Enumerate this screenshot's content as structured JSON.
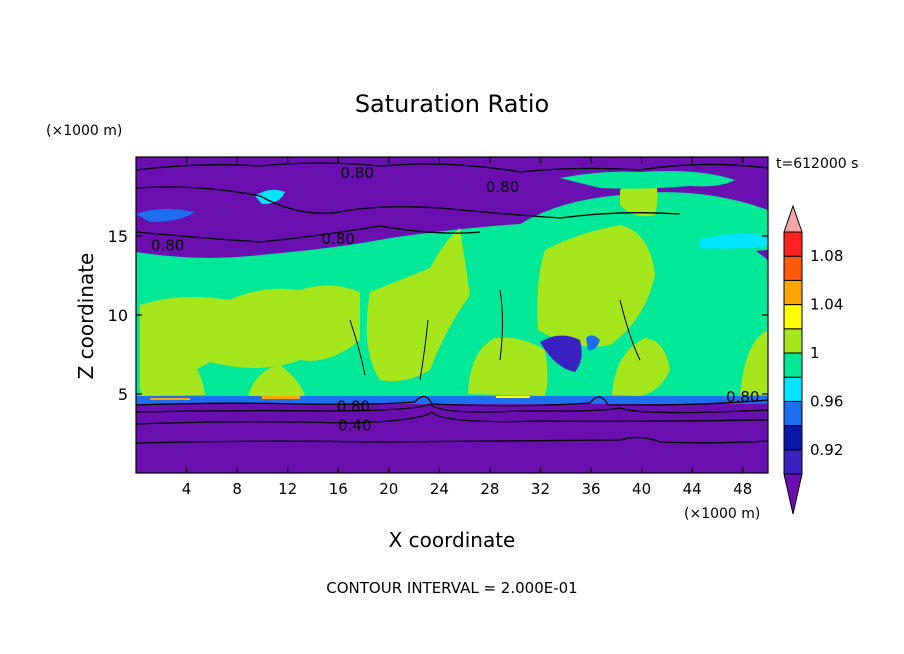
{
  "chart_data": {
    "type": "heatmap",
    "title": "Saturation Ratio",
    "xlabel": "X coordinate",
    "ylabel": "Z coordinate",
    "x_unit": "(×1000 m)",
    "y_unit": "(×1000 m)",
    "time_label": "t=612000 s",
    "footer": "CONTOUR INTERVAL = 2.000E-01",
    "xlim": [
      0,
      50
    ],
    "ylim": [
      0,
      20
    ],
    "x_ticks": [
      4,
      8,
      12,
      16,
      20,
      24,
      28,
      32,
      36,
      40,
      44,
      48
    ],
    "y_ticks": [
      5,
      10,
      15
    ],
    "colorbar": {
      "levels": [
        0.9,
        0.92,
        0.94,
        0.96,
        0.98,
        1,
        1.02,
        1.04,
        1.06,
        1.08,
        1.1
      ],
      "labels": [
        "0.92",
        "0.96",
        "1",
        "1.04",
        "1.08"
      ],
      "colors": [
        "#6a0fb0",
        "#3a22c0",
        "#0a16a8",
        "#1e6ef0",
        "#00e5ff",
        "#00e898",
        "#a6e61c",
        "#ffff00",
        "#ffa500",
        "#ff5a0a",
        "#ff2222",
        "#f4a6a6"
      ]
    },
    "contour_labels": [
      {
        "text": "0.80",
        "x": 17.5,
        "y": 19.0
      },
      {
        "text": "0.80",
        "x": 29.0,
        "y": 18.1
      },
      {
        "text": "0.80",
        "x": 2.5,
        "y": 14.4
      },
      {
        "text": "0.80",
        "x": 16.0,
        "y": 14.8
      },
      {
        "text": "0.80",
        "x": 17.2,
        "y": 4.2
      },
      {
        "text": "0.40",
        "x": 17.3,
        "y": 3.0
      },
      {
        "text": "0.80",
        "x": 48.0,
        "y": 4.8
      }
    ],
    "regions": [
      {
        "level": "0.90",
        "range": "z 0–4.6, all x"
      },
      {
        "level": "0.96–1.0",
        "range": "z 4.8–14"
      },
      {
        "level": "1.0–1.02",
        "range": "z 5–15 patches"
      },
      {
        "level": "< 0.92",
        "range": "z 16–20"
      }
    ]
  }
}
